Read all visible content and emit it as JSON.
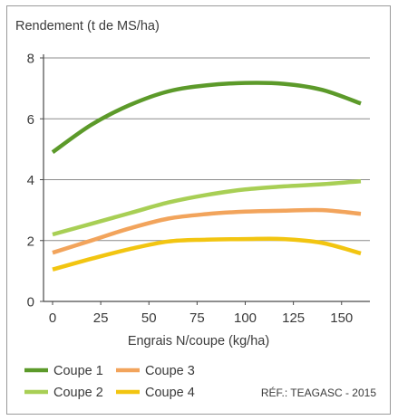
{
  "chart_data": {
    "type": "line",
    "ylabel": "Rendement (t de MS/ha)",
    "xlabel": "Engrais N/coupe (kg/ha)",
    "xlim": [
      0,
      160
    ],
    "ylim": [
      0,
      8
    ],
    "xticks": [
      "0",
      "25",
      "50",
      "75",
      "100",
      "125",
      "150"
    ],
    "yticks": [
      "0",
      "2",
      "4",
      "6",
      "8"
    ],
    "grid": "horizontal",
    "legend_position": "bottom-left",
    "series": [
      {
        "name": "Coupe 1",
        "color": "#5c9a2a",
        "x": [
          0,
          20,
          40,
          60,
          80,
          100,
          120,
          140,
          160
        ],
        "y": [
          4.9,
          5.8,
          6.45,
          6.9,
          7.1,
          7.18,
          7.15,
          6.95,
          6.5
        ]
      },
      {
        "name": "Coupe 2",
        "color": "#a8cf55",
        "x": [
          0,
          20,
          40,
          60,
          80,
          100,
          120,
          140,
          160
        ],
        "y": [
          2.2,
          2.55,
          2.9,
          3.25,
          3.5,
          3.68,
          3.78,
          3.85,
          3.95
        ]
      },
      {
        "name": "Coupe 3",
        "color": "#f2a45c",
        "x": [
          0,
          20,
          40,
          60,
          80,
          100,
          120,
          140,
          160
        ],
        "y": [
          1.6,
          2.0,
          2.4,
          2.72,
          2.87,
          2.95,
          2.98,
          3.0,
          2.88
        ]
      },
      {
        "name": "Coupe 4",
        "color": "#f2c511",
        "x": [
          0,
          20,
          40,
          60,
          80,
          100,
          120,
          140,
          160
        ],
        "y": [
          1.05,
          1.4,
          1.72,
          1.97,
          2.03,
          2.05,
          2.05,
          1.92,
          1.58
        ]
      }
    ],
    "source": "RÉF.:  TEAGASC - 2015"
  }
}
